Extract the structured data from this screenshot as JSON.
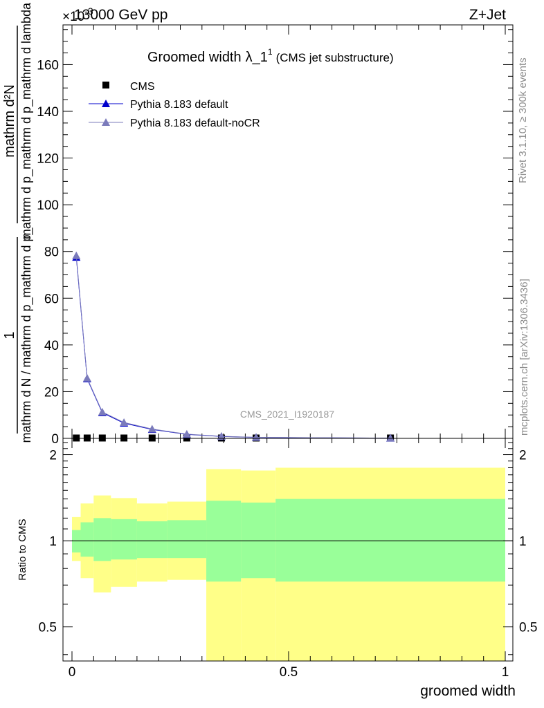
{
  "header": {
    "top_left": "13000 GeV pp",
    "top_right": "Z+Jet",
    "exponent_label": "×10",
    "exponent_value": "-3"
  },
  "side_text": {
    "rivet": "Rivet 3.1.10, ≥ 300k events",
    "mcplots": "mcplots.cern.ch [arXiv:1306.3436]"
  },
  "chart_data": [
    {
      "type": "line",
      "title": "Groomed width",
      "title_symbol": "λ_1",
      "title_sup": "1",
      "subtitle": "(CMS jet substructure)",
      "watermark": "CMS_2021_I1920187",
      "ylabel_numerator_1": "1",
      "ylabel_denominator_1": "mathrm d N / mathrm d p_mathrm d p_",
      "ylabel_numerator_2": "mathrm d²N",
      "ylabel_denominator_2": "mathrm d p_mathrm d p_mathrm d lambda",
      "xlim": [
        0,
        1
      ],
      "ylim": [
        0,
        177
      ],
      "yticks": [
        0,
        20,
        40,
        60,
        80,
        100,
        120,
        140,
        160
      ],
      "ytick_labels": [
        "0",
        "20",
        "40",
        "60",
        "80",
        "100",
        "120",
        "140",
        "160"
      ],
      "legend_position": "top-left",
      "series": [
        {
          "name": "CMS",
          "color": "#000000",
          "marker": "square",
          "x": [
            0.01,
            0.035,
            0.07,
            0.12,
            0.185,
            0.265,
            0.345,
            0.425,
            0.735
          ],
          "values": [
            0.15,
            0.15,
            0.15,
            0.15,
            0.15,
            0.15,
            0.15,
            0.15,
            0.15
          ]
        },
        {
          "name": "Pythia 8.183 default",
          "color": "#0000cc",
          "marker": "triangle",
          "x": [
            0.01,
            0.035,
            0.07,
            0.12,
            0.185,
            0.265,
            0.345,
            0.425,
            0.735
          ],
          "values": [
            77.5,
            25.5,
            11.0,
            6.5,
            3.8,
            1.7,
            0.8,
            0.4,
            0.1
          ]
        },
        {
          "name": "Pythia 8.183 default-noCR",
          "color": "#7b7bbb",
          "marker": "triangle",
          "x": [
            0.01,
            0.035,
            0.07,
            0.12,
            0.185,
            0.265,
            0.345,
            0.425,
            0.735
          ],
          "values": [
            78.2,
            25.8,
            11.3,
            6.8,
            4.0,
            1.8,
            0.9,
            0.45,
            0.1
          ]
        }
      ]
    },
    {
      "type": "area",
      "ylabel": "Ratio to CMS",
      "xlabel": "groomed width",
      "xlim": [
        0,
        1
      ],
      "ylim": [
        0.38,
        2.28
      ],
      "yticks": [
        0.5,
        1,
        2
      ],
      "ytick_labels": [
        "0.5",
        "1",
        "2"
      ],
      "xticks": [
        0,
        0.5,
        1
      ],
      "xtick_labels": [
        "0",
        "0.5",
        "1"
      ],
      "bin_edges": [
        0,
        0.02,
        0.05,
        0.09,
        0.15,
        0.22,
        0.31,
        0.39,
        0.47,
        1.0
      ],
      "inner_band_low": [
        0.91,
        0.88,
        0.85,
        0.86,
        0.87,
        0.87,
        0.72,
        0.74,
        0.72
      ],
      "inner_band_high": [
        1.09,
        1.16,
        1.2,
        1.19,
        1.17,
        1.18,
        1.38,
        1.36,
        1.4
      ],
      "outer_band_low": [
        0.85,
        0.74,
        0.66,
        0.69,
        0.72,
        0.73,
        0.38,
        0.38,
        0.38
      ],
      "outer_band_high": [
        1.21,
        1.35,
        1.44,
        1.41,
        1.35,
        1.37,
        1.78,
        1.76,
        1.8
      ],
      "reference_line": 1,
      "colors": {
        "inner": "#99ff99",
        "outer": "#ffff88"
      }
    }
  ]
}
